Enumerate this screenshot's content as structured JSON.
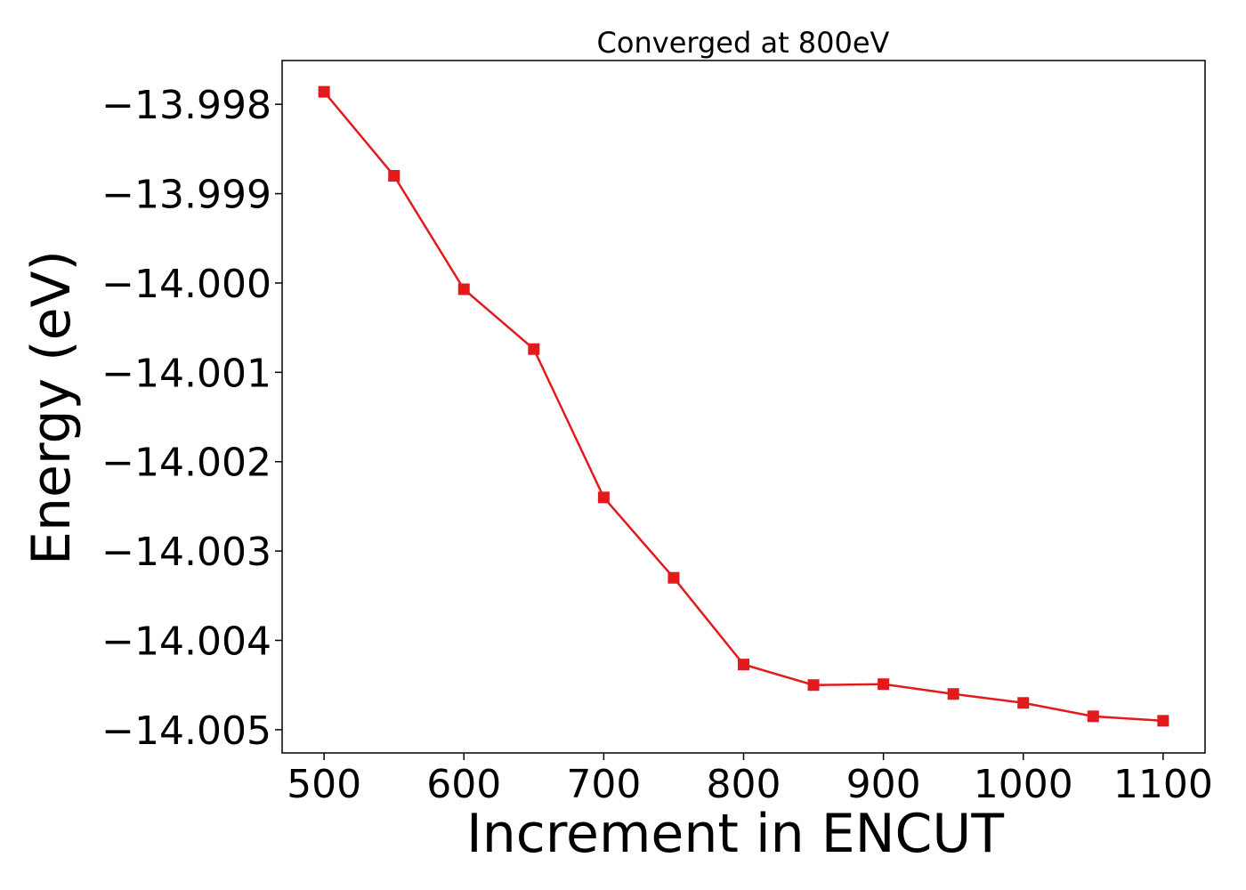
{
  "chart_data": {
    "type": "line",
    "title": "Converged at 800eV",
    "xlabel": "Increment in ENCUT",
    "ylabel": "Energy (eV)",
    "x": [
      500,
      550,
      600,
      650,
      700,
      750,
      800,
      850,
      900,
      950,
      1000,
      1050,
      1100
    ],
    "series": [
      {
        "values": [
          -13.99786,
          -13.9988,
          -14.00007,
          -14.00074,
          -14.0024,
          -14.0033,
          -14.00427,
          -14.0045,
          -14.00449,
          -14.0046,
          -14.0047,
          -14.00485,
          -14.0049
        ],
        "color": "#e31a1c",
        "marker": "square"
      }
    ],
    "xlim": [
      470,
      1130
    ],
    "ylim": [
      -14.00526,
      -13.99751
    ],
    "xticks": [
      500,
      600,
      700,
      800,
      900,
      1000,
      1100
    ],
    "xtick_labels": [
      "500",
      "600",
      "700",
      "800",
      "900",
      "1000",
      "1100"
    ],
    "yticks": [
      -13.998,
      -13.999,
      -14.0,
      -14.001,
      -14.002,
      -14.003,
      -14.004,
      -14.005
    ],
    "ytick_labels": [
      "−13.998",
      "−13.999",
      "−14.000",
      "−14.001",
      "−14.002",
      "−14.003",
      "−14.004",
      "−14.005"
    ],
    "grid": false,
    "legend": "none"
  }
}
